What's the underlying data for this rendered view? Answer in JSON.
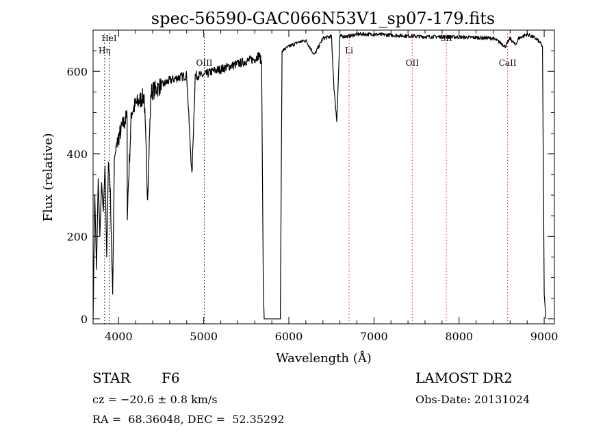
{
  "chart_data": {
    "type": "line",
    "title": "spec-56590-GAC066N53V1_sp07-179.fits",
    "xlabel": "Wavelength (Å)",
    "ylabel": "Flux (relative)",
    "xlim": [
      3700,
      9120
    ],
    "ylim": [
      -12,
      700
    ],
    "x_ticks": [
      4000,
      5000,
      6000,
      7000,
      8000,
      9000
    ],
    "y_ticks": [
      0,
      200,
      400,
      600
    ],
    "grid": false,
    "series": [
      {
        "x": [
          3700,
          3720,
          3740,
          3760,
          3780,
          3800,
          3820,
          3840,
          3860,
          3880,
          3900,
          3930,
          3950,
          3970,
          4000,
          4050,
          4100,
          4102,
          4150,
          4200,
          4250,
          4300,
          4340,
          4380,
          4420,
          4500,
          4600,
          4700,
          4800,
          4861,
          4900,
          5000,
          5100,
          5200,
          5300,
          5400,
          5500,
          5600,
          5650,
          5680,
          5700,
          5710,
          5740,
          5900,
          5920,
          6000,
          6100,
          6200,
          6300,
          6400,
          6500,
          6530,
          6563,
          6600,
          6700,
          6800,
          6900,
          7000,
          7200,
          7400,
          7600,
          7800,
          8000,
          8200,
          8400,
          8498,
          8542,
          8600,
          8662,
          8700,
          8800,
          8900,
          8950,
          8980,
          9000,
          9020
        ],
        "y": [
          0,
          300,
          120,
          340,
          200,
          330,
          260,
          370,
          150,
          380,
          330,
          60,
          390,
          410,
          440,
          470,
          490,
          260,
          500,
          520,
          530,
          540,
          300,
          550,
          555,
          565,
          578,
          585,
          590,
          345,
          590,
          590,
          600,
          605,
          612,
          618,
          625,
          630,
          640,
          620,
          80,
          0,
          0,
          0,
          650,
          660,
          670,
          675,
          640,
          680,
          685,
          560,
          480,
          685,
          685,
          690,
          690,
          690,
          688,
          686,
          684,
          684,
          683,
          682,
          680,
          668,
          660,
          680,
          664,
          680,
          690,
          680,
          670,
          660,
          60,
          0
        ],
        "values_note": ""
      }
    ],
    "lines": [
      {
        "label": "HeI",
        "x": 3889,
        "color": "#000000"
      },
      {
        "label": "Hη",
        "x": 3835,
        "color": "#000000"
      },
      {
        "label": "OIII",
        "x": 5007,
        "color": "#000000"
      },
      {
        "label": "Li",
        "x": 6708,
        "color": "#e02020"
      },
      {
        "label": "OII",
        "x": 7450,
        "color": "#e02020"
      },
      {
        "label": "SII",
        "x": 7850,
        "color": "#e02020"
      },
      {
        "label": "CaII",
        "x": 8570,
        "color": "#e02020"
      }
    ]
  },
  "info": {
    "class": "STAR",
    "subclass": "F6",
    "cz": "cz = −20.6 ± 0.8 km/s",
    "coords": "RA =  68.36048, DEC =  52.35292",
    "survey": "LAMOST DR2",
    "obsdate": "Obs-Date: 20131024"
  }
}
